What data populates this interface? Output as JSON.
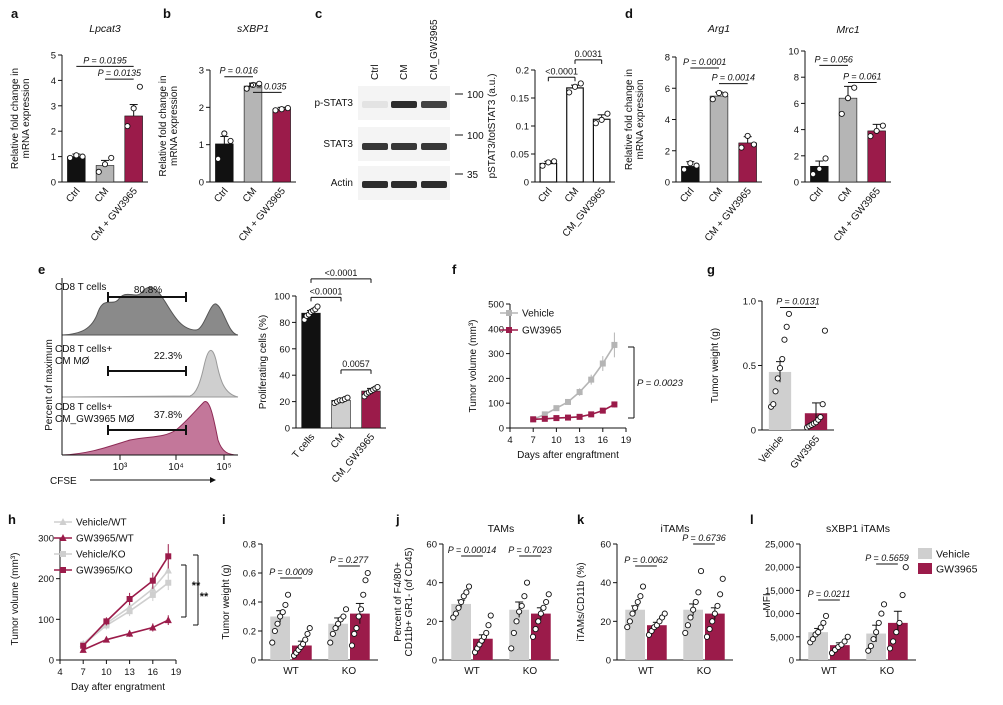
{
  "colors": {
    "black": "#111111",
    "grey": "#b5b5b5",
    "crimson": "#9b1b4a",
    "lightgrey": "#cfcfcf",
    "darkgrey": "#7f7f7f"
  },
  "chart_data": [
    {
      "id": "a",
      "type": "bar",
      "label": "a",
      "title": "Lpcat3",
      "ylabel": [
        "Relative fold change in",
        "mRNA expression"
      ],
      "ylim": [
        0,
        5
      ],
      "yticks": [
        0,
        1,
        2,
        3,
        4,
        5
      ],
      "categories": [
        "Ctrl",
        "CM",
        "CM + GW3965"
      ],
      "values": [
        1.0,
        0.65,
        2.6
      ],
      "errors": [
        0.1,
        0.2,
        0.45
      ],
      "points": [
        [
          0.95,
          1.05,
          1.0
        ],
        [
          0.4,
          0.7,
          0.95
        ],
        [
          2.2,
          2.9,
          3.75
        ]
      ],
      "colors": [
        "black",
        "grey",
        "crimson"
      ],
      "pvals": [
        {
          "from": 0,
          "to": 2,
          "text": "P = 0.0195",
          "y": 4.55
        },
        {
          "from": 1,
          "to": 2,
          "text": "P = 0.0135",
          "y": 4.05
        }
      ]
    },
    {
      "id": "b",
      "type": "bar",
      "label": "b",
      "title": "sXBP1",
      "ylabel": [
        "Relative fold change in",
        "mRNA expression"
      ],
      "ylim": [
        0,
        3
      ],
      "yticks": [
        0,
        1,
        2,
        3
      ],
      "categories": [
        "Ctrl",
        "CM",
        "CM + GW3965"
      ],
      "values": [
        1.02,
        2.57,
        1.95
      ],
      "errors": [
        0.2,
        0.08,
        0.05
      ],
      "points": [
        [
          0.62,
          1.3,
          1.1
        ],
        [
          2.5,
          2.6,
          2.63
        ],
        [
          1.92,
          1.95,
          1.98
        ]
      ],
      "colors": [
        "black",
        "grey",
        "crimson"
      ],
      "pvals": [
        {
          "from": 0,
          "to": 1,
          "text": "P = 0.016",
          "y": 2.82
        },
        {
          "from": 1,
          "to": 2,
          "text": "P = 0.035",
          "y": 2.4
        }
      ]
    },
    {
      "id": "c",
      "type": "bar",
      "title": "",
      "ylabel": [
        "pSTAT3/totSTAT3 (a.u.)"
      ],
      "ylim": [
        0,
        0.2
      ],
      "yticks": [
        0,
        0.05,
        0.1,
        0.15,
        0.2
      ],
      "categories": [
        "Ctrl",
        "CM",
        "CM_GW3965"
      ],
      "values": [
        0.033,
        0.168,
        0.112
      ],
      "errors": [
        0.004,
        0.005,
        0.008
      ],
      "points": [
        [
          0.029,
          0.035,
          0.037
        ],
        [
          0.16,
          0.17,
          0.176
        ],
        [
          0.105,
          0.111,
          0.122
        ]
      ],
      "colors": [
        "white",
        "white",
        "white"
      ],
      "pvals": [
        {
          "from": 0,
          "to": 1,
          "text": "<0.0001",
          "y": 0.187
        },
        {
          "from": 1,
          "to": 2,
          "text": "0.0031",
          "y": 0.218
        }
      ]
    },
    {
      "id": "d1",
      "type": "bar",
      "label": "d",
      "title": "Arg1",
      "ylabel": [
        "Relative fold change in",
        "mRNA expression"
      ],
      "ylim": [
        0,
        8
      ],
      "yticks": [
        0,
        2,
        4,
        6,
        8
      ],
      "categories": [
        "Ctrl",
        "CM",
        "CM + GW3965"
      ],
      "values": [
        1.0,
        5.5,
        2.5
      ],
      "errors": [
        0.3,
        0.25,
        0.4
      ],
      "points": [
        [
          0.8,
          1.2,
          1.05
        ],
        [
          5.3,
          5.7,
          5.6
        ],
        [
          2.2,
          2.95,
          2.4
        ]
      ],
      "colors": [
        "black",
        "grey",
        "crimson"
      ],
      "pvals": [
        {
          "from": 0,
          "to": 1,
          "text": "P = 0.0001",
          "y": 7.3
        },
        {
          "from": 1,
          "to": 2,
          "text": "P = 0.0014",
          "y": 6.3
        }
      ]
    },
    {
      "id": "d2",
      "type": "bar",
      "title": "Mrc1",
      "ylabel": [],
      "ylim": [
        0,
        10
      ],
      "yticks": [
        0,
        2,
        4,
        6,
        8,
        10
      ],
      "categories": [
        "Ctrl",
        "CM",
        "CM + GW3965"
      ],
      "values": [
        1.2,
        6.4,
        3.9
      ],
      "errors": [
        0.4,
        0.9,
        0.5
      ],
      "points": [
        [
          0.6,
          1.0,
          1.8
        ],
        [
          5.2,
          6.4,
          7.2
        ],
        [
          3.5,
          3.9,
          4.3
        ]
      ],
      "colors": [
        "black",
        "grey",
        "crimson"
      ],
      "pvals": [
        {
          "from": 0,
          "to": 1,
          "text": "P = 0.056",
          "y": 8.9
        },
        {
          "from": 1,
          "to": 2,
          "text": "P = 0.061",
          "y": 7.6
        }
      ]
    },
    {
      "id": "e_bar",
      "type": "bar",
      "title": "",
      "ylabel": [
        "Proliferating cells (%)"
      ],
      "ylim": [
        0,
        100
      ],
      "yticks": [
        0,
        20,
        40,
        60,
        80,
        100
      ],
      "categories": [
        "T cells",
        "CM",
        "CM_GW3965"
      ],
      "values": [
        87,
        21,
        28
      ],
      "errors": [
        2,
        1,
        2
      ],
      "points": [
        [
          82,
          85,
          86,
          88,
          89,
          90,
          92
        ],
        [
          19,
          20,
          21,
          21,
          22,
          23
        ],
        [
          24,
          26,
          27,
          28,
          29,
          30,
          31
        ]
      ],
      "colors": [
        "black",
        "lightgrey",
        "crimson"
      ],
      "pvals": [
        {
          "from": 0,
          "to": 2,
          "text": "<0.0001",
          "y": 113
        },
        {
          "from": 0,
          "to": 1,
          "text": "<0.0001",
          "y": 99
        },
        {
          "from": 1,
          "to": 2,
          "text": "0.0057",
          "y": 44
        }
      ]
    },
    {
      "id": "f",
      "type": "line",
      "label": "f",
      "title": "",
      "xlabel": "Days after engraftment",
      "ylabel": [
        "Tumor volume (mm³)"
      ],
      "xlim": [
        4,
        19
      ],
      "xticks": [
        4,
        7,
        10,
        13,
        16,
        19
      ],
      "ylim": [
        0,
        500
      ],
      "yticks": [
        0,
        100,
        200,
        300,
        400,
        500
      ],
      "series": [
        {
          "name": "Vehicle",
          "color": "grey",
          "marker": "square",
          "x": [
            7,
            8.5,
            10,
            11.5,
            13,
            14.5,
            16,
            17.5
          ],
          "y": [
            35,
            55,
            80,
            105,
            145,
            195,
            260,
            335
          ],
          "err": [
            3,
            5,
            8,
            10,
            15,
            20,
            30,
            50
          ]
        },
        {
          "name": "GW3965",
          "color": "crimson",
          "marker": "square",
          "x": [
            7,
            8.5,
            10,
            11.5,
            13,
            14.5,
            16,
            17.5
          ],
          "y": [
            35,
            37,
            40,
            42,
            45,
            55,
            70,
            95
          ],
          "err": [
            3,
            3,
            4,
            4,
            5,
            6,
            8,
            12
          ]
        }
      ],
      "pval": "P = 0.0023"
    },
    {
      "id": "g",
      "type": "scatterbar",
      "label": "g",
      "title": "",
      "ylabel": [
        "Tumor weight (g)"
      ],
      "ylim": [
        0,
        1.0
      ],
      "yticks": [
        0,
        0.5,
        1.0
      ],
      "categories": [
        "Vehicle",
        "GW3965"
      ],
      "values": [
        0.45,
        0.13
      ],
      "errors": [
        0.08,
        0.08
      ],
      "points": [
        [
          0.18,
          0.2,
          0.3,
          0.4,
          0.48,
          0.55,
          0.7,
          0.8,
          0.9
        ],
        [
          0.02,
          0.03,
          0.04,
          0.05,
          0.06,
          0.08,
          0.1,
          0.2,
          0.77
        ]
      ],
      "colors": [
        "lightgrey",
        "crimson"
      ],
      "pvals": [
        {
          "from": 0,
          "to": 1,
          "text": "P = 0.0131",
          "y": 0.95
        }
      ]
    },
    {
      "id": "h",
      "type": "line",
      "label": "h",
      "title": "",
      "xlabel": "Day after engratment",
      "ylabel": [
        "Tumor volume (mm³)"
      ],
      "xlim": [
        4,
        19
      ],
      "xticks": [
        4,
        7,
        10,
        13,
        16,
        19
      ],
      "ylim": [
        0,
        300
      ],
      "yticks": [
        0,
        100,
        200,
        300
      ],
      "series": [
        {
          "name": "Vehicle/WT",
          "color": "lightgrey",
          "marker": "triangle",
          "x": [
            7,
            10,
            13,
            16,
            18
          ],
          "y": [
            40,
            90,
            130,
            175,
            220
          ],
          "err": [
            5,
            10,
            12,
            15,
            20
          ]
        },
        {
          "name": "GW3965/WT",
          "color": "crimson",
          "marker": "triangle",
          "x": [
            7,
            10,
            13,
            16,
            18
          ],
          "y": [
            25,
            50,
            65,
            80,
            98
          ],
          "err": [
            3,
            6,
            8,
            10,
            12
          ]
        },
        {
          "name": "Vehicle/KO",
          "color": "lightgrey",
          "marker": "square",
          "x": [
            7,
            10,
            13,
            16,
            18
          ],
          "y": [
            38,
            85,
            120,
            160,
            190
          ],
          "err": [
            5,
            10,
            12,
            15,
            18
          ]
        },
        {
          "name": "GW3965/KO",
          "color": "crimson",
          "marker": "square",
          "x": [
            7,
            10,
            13,
            16,
            18
          ],
          "y": [
            35,
            95,
            150,
            195,
            255
          ],
          "err": [
            5,
            10,
            15,
            20,
            30
          ]
        }
      ],
      "sig": [
        "**",
        "**"
      ]
    },
    {
      "id": "i",
      "type": "groupbar",
      "label": "i",
      "title": "",
      "ylabel": [
        "Tumor weight (g)"
      ],
      "ylim": [
        0,
        0.8
      ],
      "yticks": [
        0,
        0.2,
        0.4,
        0.6,
        0.8
      ],
      "groups": [
        "WT",
        "KO"
      ],
      "values": [
        [
          0.3,
          0.1
        ],
        [
          0.25,
          0.32
        ]
      ],
      "errors": [
        [
          0.04,
          0.03
        ],
        [
          0.04,
          0.07
        ]
      ],
      "points": [
        [
          [
            0.12,
            0.2,
            0.25,
            0.3,
            0.33,
            0.38,
            0.45
          ],
          [
            0.03,
            0.05,
            0.07,
            0.09,
            0.11,
            0.14,
            0.18,
            0.22
          ]
        ],
        [
          [
            0.12,
            0.18,
            0.22,
            0.25,
            0.28,
            0.3,
            0.35
          ],
          [
            0.1,
            0.18,
            0.22,
            0.3,
            0.35,
            0.45,
            0.55,
            0.6
          ]
        ]
      ],
      "pvals": [
        "P = 0.0009",
        "P = 0.277"
      ]
    },
    {
      "id": "j",
      "type": "groupbar",
      "label": "j",
      "title": "TAMs",
      "ylabel": [
        "Percent of F4/80+",
        "CD11b+ GR1- (of CD45)"
      ],
      "ylim": [
        0,
        60
      ],
      "yticks": [
        0,
        20,
        40,
        60
      ],
      "groups": [
        "WT",
        "KO"
      ],
      "values": [
        [
          29,
          11
        ],
        [
          26,
          24
        ]
      ],
      "errors": [
        [
          2,
          2
        ],
        [
          4,
          3
        ]
      ],
      "points": [
        [
          [
            22,
            24,
            27,
            30,
            33,
            35,
            38
          ],
          [
            4,
            6,
            8,
            10,
            12,
            14,
            18,
            23
          ]
        ],
        [
          [
            6,
            14,
            20,
            25,
            28,
            33,
            40
          ],
          [
            12,
            16,
            20,
            24,
            27,
            30,
            34
          ]
        ]
      ],
      "pvals": [
        "P = 0.00014",
        "P = 0.7023"
      ]
    },
    {
      "id": "k",
      "type": "groupbar",
      "label": "k",
      "title": "iTAMs",
      "ylabel": [
        "iTAMs/CD11b (%)"
      ],
      "ylim": [
        0,
        60
      ],
      "yticks": [
        0,
        20,
        40,
        60
      ],
      "groups": [
        "WT",
        "KO"
      ],
      "values": [
        [
          26,
          18
        ],
        [
          26,
          24
        ]
      ],
      "errors": [
        [
          2,
          1.5
        ],
        [
          3,
          3
        ]
      ],
      "points": [
        [
          [
            17,
            20,
            24,
            27,
            30,
            33,
            38
          ],
          [
            13,
            15,
            17,
            18,
            20,
            22,
            24
          ]
        ],
        [
          [
            14,
            18,
            22,
            26,
            30,
            35,
            46
          ],
          [
            12,
            16,
            20,
            24,
            28,
            34,
            42
          ]
        ]
      ],
      "pvals": [
        "P = 0.0062",
        "P = 0.6736"
      ]
    },
    {
      "id": "l",
      "type": "groupbar",
      "label": "l",
      "title": "sXBP1 iTAMs",
      "ylabel": [
        "MFI"
      ],
      "ylim": [
        0,
        25000
      ],
      "yticks": [
        0,
        5000,
        10000,
        15000,
        20000,
        25000
      ],
      "ytickLabels": [
        "0",
        "5,000",
        "10,000",
        "15,000",
        "20,000",
        "25,000"
      ],
      "groups": [
        "WT",
        "KO"
      ],
      "values": [
        [
          6000,
          3200
        ],
        [
          5700,
          8000
        ]
      ],
      "errors": [
        [
          800,
          500
        ],
        [
          1800,
          2500
        ]
      ],
      "points": [
        [
          [
            3800,
            4500,
            5500,
            6000,
            7000,
            8000,
            9500
          ],
          [
            1500,
            2200,
            2800,
            3300,
            4000,
            5000
          ]
        ],
        [
          [
            2000,
            3000,
            4500,
            6000,
            8000,
            10000,
            12000
          ],
          [
            2500,
            4000,
            6000,
            8000,
            14000,
            20000
          ]
        ]
      ],
      "pvals": [
        "P = 0.0211",
        "P = 0.5659"
      ],
      "legend": [
        "Vehicle",
        "GW3965"
      ]
    }
  ],
  "blot": {
    "label": "c",
    "lanes": [
      "Ctrl",
      "CM",
      "CM_GW3965"
    ],
    "rows": [
      "p-STAT3",
      "STAT3",
      "Actin"
    ],
    "markers": [
      "100",
      "100",
      "35"
    ]
  },
  "flow": {
    "label": "e",
    "panels": [
      {
        "line1": "CD8 T cells",
        "line2": "",
        "pct": "80.8%"
      },
      {
        "line1": "CD8 T cells+",
        "line2": "CM MØ",
        "pct": "22.3%"
      },
      {
        "line1": "CD8 T cells+",
        "line2": "CM_GW3965 MØ",
        "pct": "37.8%"
      }
    ],
    "ylabel": "Percent of maximum",
    "xlabel": "CFSE",
    "xticks": [
      "10³",
      "10⁴",
      "10⁵"
    ]
  }
}
